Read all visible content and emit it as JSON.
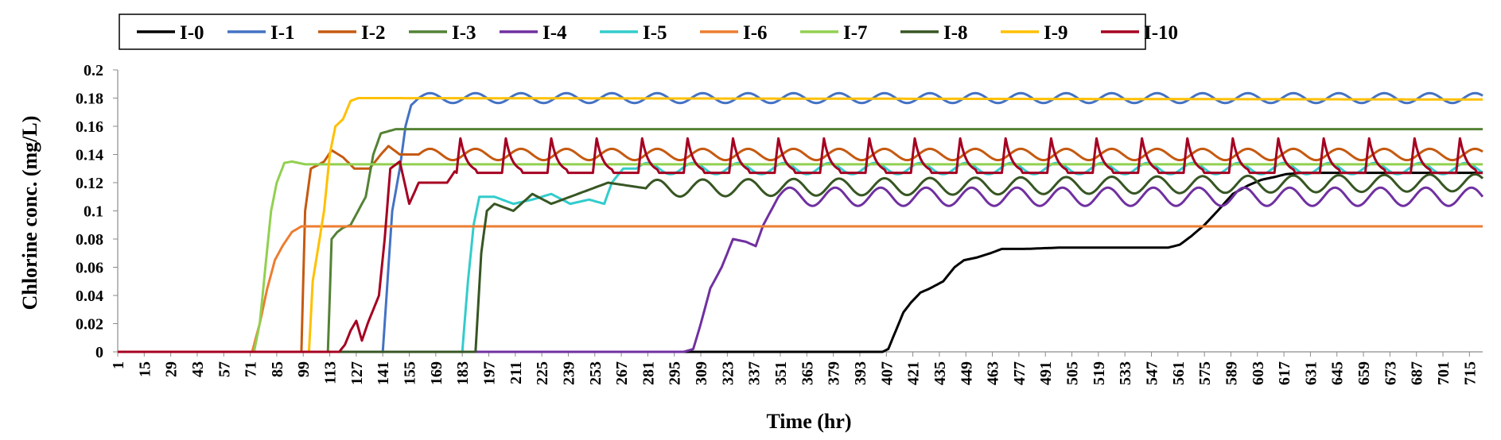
{
  "chart_data": {
    "type": "line",
    "title": "",
    "xlabel": "Time (hr)",
    "ylabel": "Chlorine conc. (mg/L)",
    "xlim": [
      1,
      722
    ],
    "ylim": [
      0,
      0.2
    ],
    "grid": false,
    "legend_position": "top",
    "x_ticks": [
      1,
      15,
      29,
      43,
      57,
      71,
      85,
      99,
      113,
      127,
      141,
      155,
      169,
      183,
      197,
      211,
      225,
      239,
      253,
      267,
      281,
      295,
      309,
      323,
      337,
      351,
      365,
      379,
      393,
      407,
      421,
      435,
      449,
      463,
      477,
      491,
      505,
      519,
      533,
      547,
      561,
      575,
      589,
      603,
      617,
      631,
      645,
      659,
      673,
      687,
      701,
      715
    ],
    "y_ticks": [
      {
        "value": 0,
        "label": "0"
      },
      {
        "value": 0.02,
        "label": "0.02"
      },
      {
        "value": 0.04,
        "label": "0.04"
      },
      {
        "value": 0.06,
        "label": "0.06"
      },
      {
        "value": 0.08,
        "label": "0.08"
      },
      {
        "value": 0.1,
        "label": "0.1"
      },
      {
        "value": 0.12,
        "label": "0.12"
      },
      {
        "value": 0.14,
        "label": "0.14"
      },
      {
        "value": 0.16,
        "label": "0.16"
      },
      {
        "value": 0.18,
        "label": "0.18"
      },
      {
        "value": 0.2,
        "label": "0.2"
      }
    ],
    "series": [
      {
        "name": "I-0",
        "color": "#000000",
        "x": [
          1,
          405,
          408,
          412,
          416,
          420,
          425,
          430,
          437,
          443,
          448,
          455,
          462,
          468,
          480,
          500,
          520,
          540,
          556,
          562,
          568,
          575,
          582,
          590,
          598,
          605,
          612,
          618,
          626,
          650,
          700,
          722
        ],
        "y": [
          0,
          0,
          0.002,
          0.015,
          0.028,
          0.035,
          0.042,
          0.045,
          0.05,
          0.06,
          0.065,
          0.067,
          0.07,
          0.073,
          0.073,
          0.074,
          0.074,
          0.074,
          0.074,
          0.076,
          0.082,
          0.09,
          0.1,
          0.112,
          0.118,
          0.122,
          0.124,
          0.126,
          0.127,
          0.127,
          0.127,
          0.127
        ]
      },
      {
        "name": "I-1",
        "color": "#4472C4",
        "x": [
          1,
          141,
          143,
          146,
          150,
          153,
          156,
          160,
          722
        ],
        "y": [
          0,
          0,
          0.04,
          0.1,
          0.13,
          0.16,
          0.175,
          0.18,
          0.18
        ],
        "wave": {
          "from": 160,
          "period": 24,
          "amp": 0.0035
        }
      },
      {
        "name": "I-2",
        "color": "#C55A11",
        "x": [
          1,
          98,
          100,
          103,
          106,
          110,
          114,
          120,
          126,
          134,
          140,
          144,
          150,
          160,
          722
        ],
        "y": [
          0,
          0,
          0.1,
          0.13,
          0.132,
          0.135,
          0.143,
          0.138,
          0.13,
          0.13,
          0.14,
          0.146,
          0.14,
          0.14,
          0.14
        ],
        "wave": {
          "from": 160,
          "period": 24,
          "amp": 0.004
        }
      },
      {
        "name": "I-3",
        "color": "#548235",
        "x": [
          1,
          112,
          114,
          117,
          120,
          124,
          128,
          132,
          136,
          140,
          148,
          160,
          722
        ],
        "y": [
          0,
          0,
          0.08,
          0.085,
          0.088,
          0.09,
          0.1,
          0.11,
          0.14,
          0.155,
          0.158,
          0.158,
          0.158
        ]
      },
      {
        "name": "I-4",
        "color": "#7030A0",
        "x": [
          1,
          300,
          305,
          309,
          314,
          320,
          326,
          333,
          338,
          342,
          346,
          350,
          722
        ],
        "y": [
          0,
          0,
          0.002,
          0.02,
          0.045,
          0.06,
          0.08,
          0.078,
          0.075,
          0.09,
          0.1,
          0.11,
          0.11
        ],
        "wave": {
          "from": 350,
          "period": 24,
          "amp": 0.0065
        }
      },
      {
        "name": "I-5",
        "color": "#33CCCC",
        "x": [
          1,
          183,
          186,
          189,
          192,
          200,
          210,
          220,
          230,
          240,
          250,
          258,
          262,
          268,
          275,
          722
        ],
        "y": [
          0,
          0,
          0.05,
          0.09,
          0.11,
          0.11,
          0.105,
          0.108,
          0.112,
          0.105,
          0.108,
          0.105,
          0.12,
          0.13,
          0.13,
          0.13
        ],
        "wave": {
          "from": 275,
          "period": 24,
          "amp": 0.004
        }
      },
      {
        "name": "I-6",
        "color": "#ED7D31",
        "x": [
          1,
          72,
          76,
          80,
          84,
          88,
          93,
          98,
          722
        ],
        "y": [
          0,
          0,
          0.02,
          0.045,
          0.065,
          0.075,
          0.085,
          0.089,
          0.089
        ]
      },
      {
        "name": "I-7",
        "color": "#92D050",
        "x": [
          1,
          73,
          76,
          79,
          82,
          85,
          89,
          93,
          100,
          110,
          722
        ],
        "y": [
          0,
          0,
          0.02,
          0.06,
          0.1,
          0.12,
          0.134,
          0.135,
          0.133,
          0.133,
          0.133
        ]
      },
      {
        "name": "I-8",
        "color": "#375623",
        "x": [
          1,
          190,
          193,
          196,
          200,
          210,
          220,
          230,
          240,
          250,
          260,
          270,
          280,
          722
        ],
        "y": [
          0,
          0,
          0.07,
          0.1,
          0.105,
          0.1,
          0.112,
          0.105,
          0.11,
          0.115,
          0.12,
          0.118,
          0.116,
          0.12
        ],
        "wave": {
          "from": 280,
          "period": 24,
          "amp": 0.006
        }
      },
      {
        "name": "I-9",
        "color": "#FFC000",
        "x": [
          1,
          102,
          104,
          107,
          110,
          113,
          116,
          120,
          124,
          128,
          135,
          722
        ],
        "y": [
          0,
          0,
          0.05,
          0.075,
          0.1,
          0.14,
          0.16,
          0.165,
          0.178,
          0.18,
          0.18,
          0.179
        ]
      },
      {
        "name": "I-10",
        "color": "#A50021",
        "x": [
          1,
          118,
          121,
          124,
          127,
          130,
          133,
          136,
          139,
          142,
          145,
          150,
          155,
          160,
          168,
          175,
          180,
          722
        ],
        "y": [
          0,
          0,
          0.005,
          0.015,
          0.022,
          0.008,
          0.02,
          0.03,
          0.04,
          0.08,
          0.13,
          0.135,
          0.105,
          0.12,
          0.12,
          0.12,
          0.13,
          0.13
        ],
        "spikes": {
          "from": 180,
          "period": 24,
          "peak": 0.155,
          "base": 0.13
        }
      }
    ]
  }
}
